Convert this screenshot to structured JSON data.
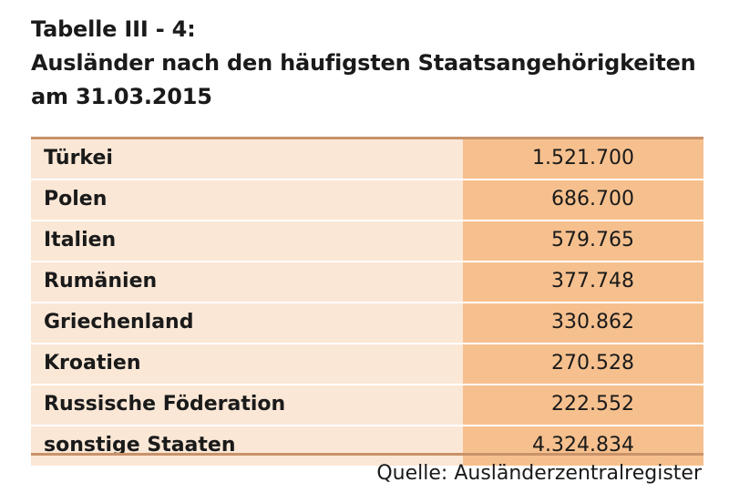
{
  "title": {
    "line1": "Tabelle III - 4:",
    "line2": "Ausländer nach den häufigsten Staatsangehörigkeiten",
    "line3": "am 31.03.2015"
  },
  "table": {
    "rows": [
      {
        "name": "Türkei",
        "value": "1.521.700"
      },
      {
        "name": "Polen",
        "value": "686.700"
      },
      {
        "name": "Italien",
        "value": "579.765"
      },
      {
        "name": "Rumänien",
        "value": "377.748"
      },
      {
        "name": "Griechenland",
        "value": "330.862"
      },
      {
        "name": "Kroatien",
        "value": "270.528"
      },
      {
        "name": "Russische Föderation",
        "value": "222.552"
      },
      {
        "name": "sonstige Staaten",
        "value": "4.324.834"
      }
    ]
  },
  "source": "Quelle: Ausländerzentralregister",
  "colors": {
    "name_bg": "#fbe7d6",
    "value_bg": "#f6c08e",
    "rule": "#c8926a"
  }
}
